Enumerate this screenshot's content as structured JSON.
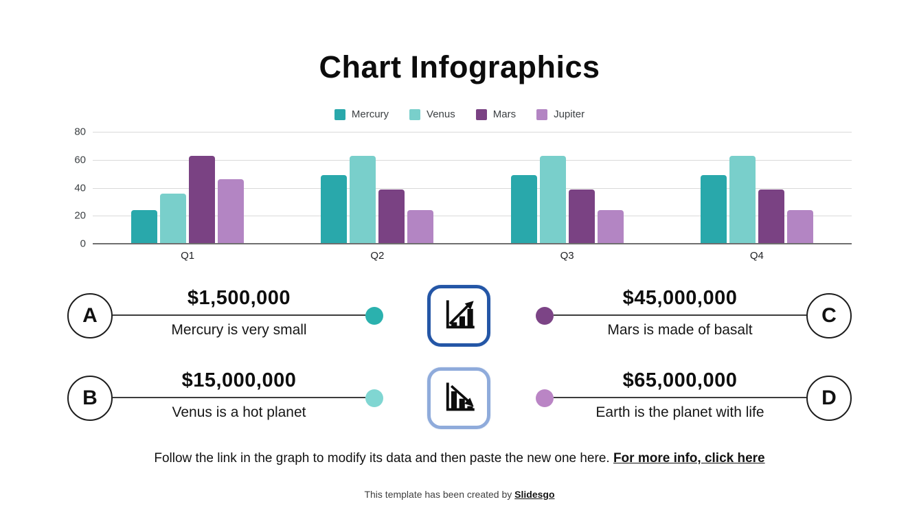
{
  "title": "Chart Infographics",
  "chart_data": {
    "type": "bar",
    "title": "",
    "xlabel": "",
    "ylabel": "",
    "categories": [
      "Q1",
      "Q2",
      "Q3",
      "Q4"
    ],
    "series": [
      {
        "name": "Mercury",
        "color": "#29A8AB",
        "values": [
          24,
          49,
          49,
          49
        ]
      },
      {
        "name": "Venus",
        "color": "#79CFCB",
        "values": [
          36,
          63,
          63,
          63
        ]
      },
      {
        "name": "Mars",
        "color": "#7A4283",
        "values": [
          63,
          39,
          39,
          39
        ]
      },
      {
        "name": "Jupiter",
        "color": "#B385C3",
        "values": [
          46,
          24,
          24,
          24
        ]
      }
    ],
    "ylim": [
      0,
      80
    ],
    "yticks": [
      0,
      20,
      40,
      60,
      80
    ],
    "legend_position": "top",
    "grid": true
  },
  "chart_colors": {
    "gridline": "#d9d9d9",
    "axis_line": "#6e6e6e",
    "connector_line": "#3b3b3b"
  },
  "callouts": {
    "left": [
      {
        "letter": "A",
        "value": "$1,500,000",
        "caption": "Mercury is very small",
        "dot_color": "#2BB1AE"
      },
      {
        "letter": "B",
        "value": "$15,000,000",
        "caption": "Venus is a hot planet",
        "dot_color": "#80D6D2"
      }
    ],
    "right": [
      {
        "letter": "C",
        "value": "$45,000,000",
        "caption": "Mars is made of basalt",
        "dot_color": "#7C4486"
      },
      {
        "letter": "D",
        "value": "$65,000,000",
        "caption": "Earth is the planet with life",
        "dot_color": "#BA85C5"
      }
    ]
  },
  "icon_buttons": [
    {
      "icon": "chart-increase-icon",
      "border_color": "#2456A6"
    },
    {
      "icon": "chart-decrease-icon",
      "border_color": "#8FABDB"
    }
  ],
  "footer": {
    "text": "Follow the link in the graph to modify its data and then paste the new one here. ",
    "link": "For more info, click here"
  },
  "credits": {
    "text": "This template has been created by ",
    "link": "Slidesgo"
  }
}
